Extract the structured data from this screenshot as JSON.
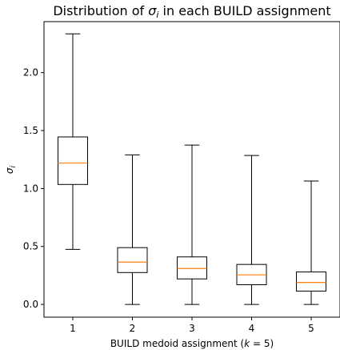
{
  "chart_data": {
    "type": "boxplot",
    "title_prefix": "Distribution of ",
    "title_symbol": "σ",
    "title_sub": "i",
    "title_suffix": " in each BUILD assignment",
    "xlabel_prefix": "BUILD medoid assignment (",
    "xlabel_var": "k",
    "xlabel_suffix": " = 5)",
    "ylabel_symbol": "σ",
    "ylabel_sub": "i",
    "ylim": [
      -0.11,
      2.44
    ],
    "yticks": [
      0.0,
      0.5,
      1.0,
      1.5,
      2.0
    ],
    "ytick_labels": [
      "0.0",
      "0.5",
      "1.0",
      "1.5",
      "2.0"
    ],
    "categories": [
      "1",
      "2",
      "3",
      "4",
      "5"
    ],
    "boxes": [
      {
        "category": "1",
        "whisker_low": 0.475,
        "q1": 1.035,
        "median": 1.22,
        "q3": 1.445,
        "whisker_high": 2.335
      },
      {
        "category": "2",
        "whisker_low": 0.0,
        "q1": 0.275,
        "median": 0.365,
        "q3": 0.49,
        "whisker_high": 1.29
      },
      {
        "category": "3",
        "whisker_low": 0.0,
        "q1": 0.22,
        "median": 0.31,
        "q3": 0.41,
        "whisker_high": 1.375
      },
      {
        "category": "4",
        "whisker_low": 0.0,
        "q1": 0.17,
        "median": 0.255,
        "q3": 0.345,
        "whisker_high": 1.285
      },
      {
        "category": "5",
        "whisker_low": 0.0,
        "q1": 0.115,
        "median": 0.19,
        "q3": 0.28,
        "whisker_high": 1.065
      }
    ],
    "median_color": "#ff7f0e",
    "line_color": "#000000",
    "grid": false
  }
}
